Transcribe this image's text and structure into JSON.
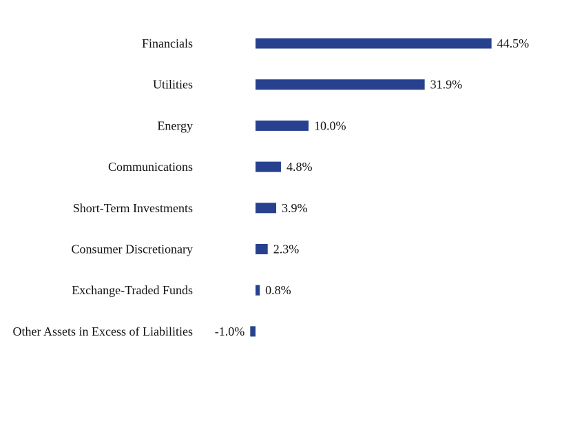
{
  "chart_data": {
    "type": "bar",
    "orientation": "horizontal",
    "categories": [
      "Financials",
      "Utilities",
      "Energy",
      "Communications",
      "Short-Term Investments",
      "Consumer Discretionary",
      "Exchange-Traded Funds",
      "Other Assets in Excess of Liabilities"
    ],
    "values": [
      44.5,
      31.9,
      10.0,
      4.8,
      3.9,
      2.3,
      0.8,
      -1.0
    ],
    "data_labels": [
      "44.5%",
      "31.9%",
      "10.0%",
      "4.8%",
      "3.9%",
      "2.3%",
      "0.8%",
      "-1.0%"
    ],
    "bar_color": "#27418f",
    "grid": false,
    "legend": "none",
    "xlim": [
      -1.0,
      44.5
    ]
  }
}
